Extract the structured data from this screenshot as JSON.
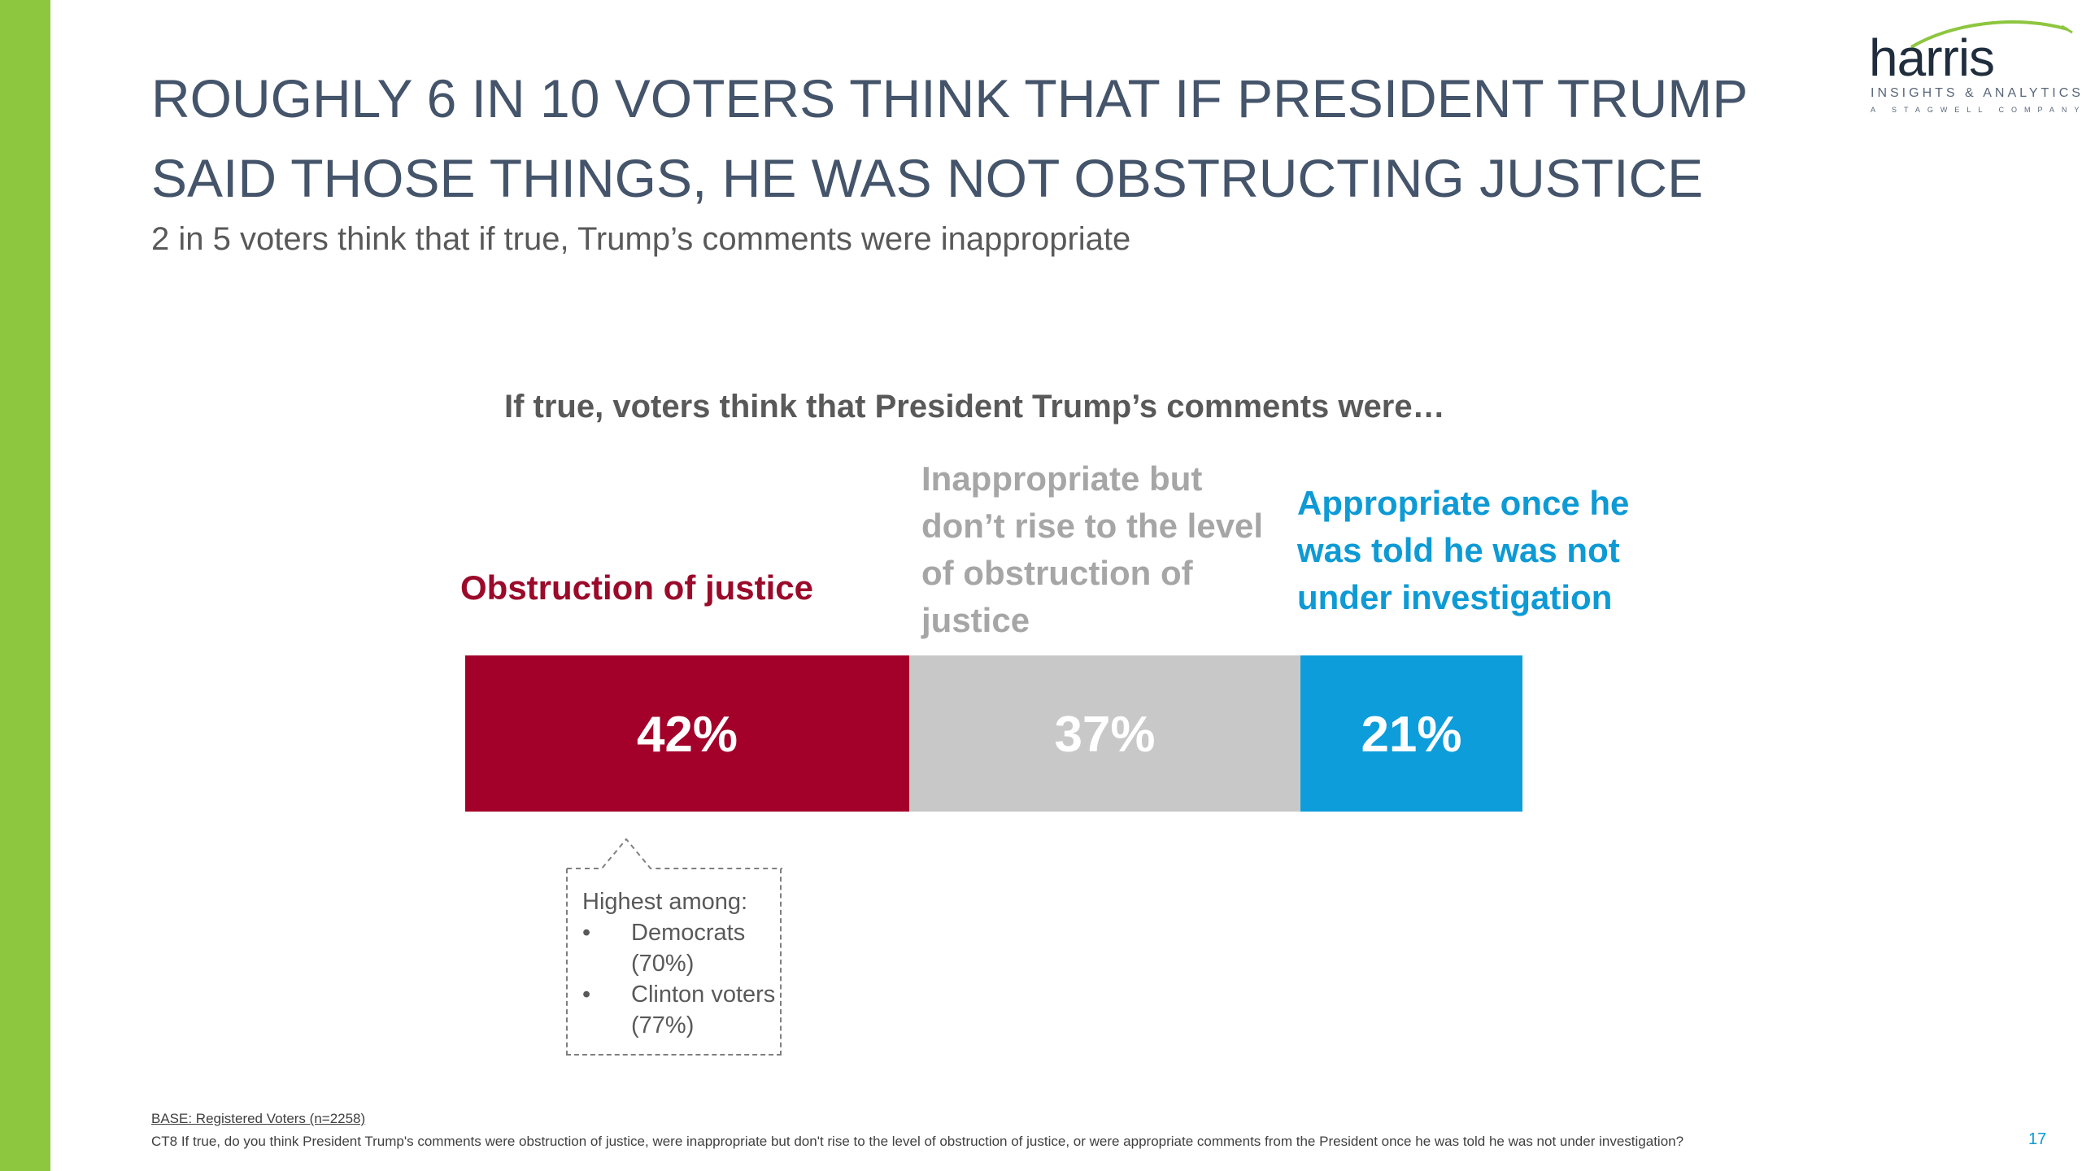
{
  "slide": {
    "title": "ROUGHLY 6 IN 10 VOTERS THINK THAT IF PRESIDENT TRUMP SAID THOSE THINGS, HE WAS NOT OBSTRUCTING JUSTICE",
    "subtitle": "2 in 5 voters think that if true, Trump’s comments were inappropriate",
    "page_number": "17"
  },
  "logo": {
    "word": "harris",
    "tagline": "INSIGHTS & ANALYTICS",
    "sub_tagline": "A STAGWELL COMPANY"
  },
  "chart_data": {
    "type": "bar",
    "orientation": "horizontal-stacked",
    "title": "If true, voters think that President Trump’s comments were…",
    "categories": [
      "Obstruction of justice",
      "Inappropriate but don’t rise to the level of obstruction of justice",
      "Appropriate once he was told he was not under investigation"
    ],
    "values": [
      42,
      37,
      21
    ],
    "value_labels": [
      "42%",
      "37%",
      "21%"
    ],
    "colors": [
      "#a3002a",
      "#c8c8c8",
      "#0d9ddb"
    ],
    "label_colors": [
      "#9b0a2a",
      "#a6a6a6",
      "#0d9ad5"
    ],
    "legend": "labels-above-segments",
    "grid": false
  },
  "callout": {
    "heading": "Highest among:",
    "items": [
      "Democrats (70%)",
      "Clinton voters (77%)"
    ]
  },
  "footnote": {
    "base": "BASE: Registered Voters (n=2258)",
    "question": "CT8 If true, do you think President Trump's comments were obstruction of justice, were inappropriate but don't rise to the level of obstruction of justice, or were appropriate comments from the President once he was told he was not under investigation?"
  }
}
